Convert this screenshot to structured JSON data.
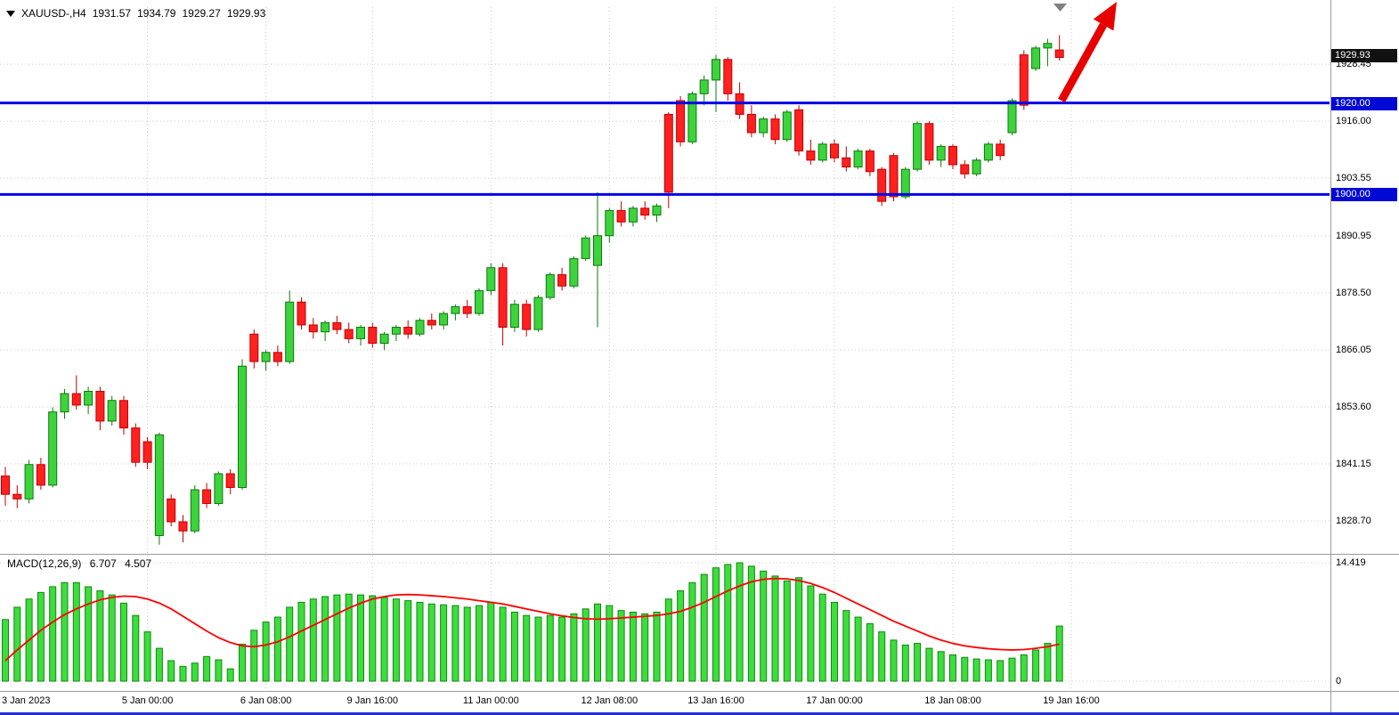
{
  "header": {
    "symbol_tf": "XAUUSD-,H4",
    "open": "1931.57",
    "high": "1934.79",
    "low": "1929.27",
    "close": "1929.93"
  },
  "macd": {
    "name": "MACD(12,26,9)",
    "value": "6.707",
    "signal": "4.507"
  },
  "price_axis": {
    "current_badge": "1929.93",
    "level_badges": [
      "1920.00",
      "1900.00"
    ],
    "scale_labels": [
      "1928.45",
      "1916.00",
      "1903.55",
      "1890.95",
      "1878.50",
      "1866.05",
      "1853.60",
      "1841.15",
      "1828.70"
    ]
  },
  "macd_axis": {
    "labels": [
      "14.419",
      "0"
    ]
  },
  "time_axis": {
    "labels": [
      "3 Jan 2023",
      "5 Jan 00:00",
      "6 Jan 08:00",
      "9 Jan 16:00",
      "11 Jan 00:00",
      "12 Jan 08:00",
      "13 Jan 16:00",
      "17 Jan 00:00",
      "18 Jan 08:00",
      "19 Jan 16:00"
    ]
  },
  "colors": {
    "bull": "#3dd33d",
    "bull_edge": "#0b7a0b",
    "bear": "#ff2020",
    "bear_edge": "#c00000",
    "level_line": "#0000e6",
    "badge_black": "#111111",
    "badge_blue": "#0008d6",
    "grid": "#c8c8c8",
    "signal_line": "#ff0000",
    "hist": "#3ddd3d",
    "hist_edge": "#0e8a0e",
    "arrow": "#e60000",
    "marker": "#808080",
    "window_border": "#2031cc"
  },
  "chart_data": [
    {
      "type": "candlestick",
      "title": "XAUUSD- H4",
      "ylim": [
        1823,
        1937
      ],
      "price_gridlines": [
        1928.45,
        1916.0,
        1903.55,
        1890.95,
        1878.5,
        1866.05,
        1853.6,
        1841.15,
        1828.7
      ],
      "levels": [
        1920.0,
        1900.0
      ],
      "current_bar": {
        "open": 1931.57,
        "high": 1934.79,
        "low": 1929.27,
        "close": 1929.93
      },
      "time_label_bars": [
        0,
        12,
        22,
        31,
        41,
        51,
        60,
        70,
        80,
        90
      ],
      "time_gridline_bars": [
        12,
        22,
        31,
        41,
        51,
        60,
        70,
        80,
        90
      ],
      "candles": [
        [
          1838.5,
          1840.5,
          1832.0,
          1834.5
        ],
        [
          1834.5,
          1836.5,
          1831.5,
          1833.5
        ],
        [
          1833.5,
          1842.0,
          1832.5,
          1841.0
        ],
        [
          1841.0,
          1842.5,
          1835.5,
          1836.5
        ],
        [
          1836.5,
          1853.5,
          1836.0,
          1852.5
        ],
        [
          1852.5,
          1857.5,
          1851.0,
          1856.5
        ],
        [
          1856.5,
          1860.5,
          1853.0,
          1854.0
        ],
        [
          1854.0,
          1858.0,
          1852.0,
          1857.0
        ],
        [
          1857.0,
          1858.0,
          1848.5,
          1850.5
        ],
        [
          1850.5,
          1856.0,
          1849.5,
          1855.0
        ],
        [
          1855.0,
          1856.0,
          1847.5,
          1849.0
        ],
        [
          1849.0,
          1850.0,
          1840.5,
          1841.5
        ],
        [
          1846.0,
          1847.0,
          1840.0,
          1841.5
        ],
        [
          1825.5,
          1848.0,
          1823.5,
          1847.5
        ],
        [
          1833.5,
          1834.5,
          1827.5,
          1828.5
        ],
        [
          1828.5,
          1830.0,
          1824.0,
          1826.5
        ],
        [
          1826.5,
          1836.5,
          1826.0,
          1835.5
        ],
        [
          1835.5,
          1837.0,
          1831.5,
          1832.5
        ],
        [
          1832.5,
          1839.5,
          1832.0,
          1839.0
        ],
        [
          1839.0,
          1840.0,
          1834.5,
          1836.0
        ],
        [
          1836.0,
          1864.0,
          1835.5,
          1862.5
        ],
        [
          1869.5,
          1870.5,
          1862.0,
          1863.5
        ],
        [
          1863.5,
          1866.0,
          1861.5,
          1865.5
        ],
        [
          1865.5,
          1867.0,
          1862.5,
          1863.5
        ],
        [
          1863.5,
          1879.0,
          1863.0,
          1876.5
        ],
        [
          1876.5,
          1877.5,
          1870.5,
          1871.5
        ],
        [
          1871.5,
          1873.0,
          1868.5,
          1870.0
        ],
        [
          1870.0,
          1872.5,
          1868.0,
          1872.0
        ],
        [
          1872.0,
          1873.5,
          1869.5,
          1870.5
        ],
        [
          1870.5,
          1872.0,
          1867.5,
          1868.5
        ],
        [
          1868.5,
          1871.5,
          1867.0,
          1871.0
        ],
        [
          1871.0,
          1872.0,
          1866.5,
          1867.5
        ],
        [
          1867.5,
          1870.0,
          1866.0,
          1869.5
        ],
        [
          1869.5,
          1871.5,
          1868.0,
          1871.0
        ],
        [
          1871.0,
          1872.5,
          1868.5,
          1869.5
        ],
        [
          1869.5,
          1873.0,
          1869.0,
          1872.5
        ],
        [
          1872.5,
          1874.0,
          1870.5,
          1871.5
        ],
        [
          1871.5,
          1874.5,
          1870.5,
          1874.0
        ],
        [
          1874.0,
          1876.0,
          1872.5,
          1875.5
        ],
        [
          1875.5,
          1877.0,
          1873.0,
          1874.0
        ],
        [
          1874.0,
          1879.5,
          1873.5,
          1879.0
        ],
        [
          1879.0,
          1885.0,
          1878.0,
          1884.0
        ],
        [
          1884.0,
          1885.0,
          1867.0,
          1871.0
        ],
        [
          1871.0,
          1877.0,
          1870.0,
          1876.0
        ],
        [
          1876.0,
          1877.0,
          1869.0,
          1870.5
        ],
        [
          1870.5,
          1878.0,
          1870.0,
          1877.5
        ],
        [
          1877.5,
          1883.0,
          1877.0,
          1882.5
        ],
        [
          1882.5,
          1884.0,
          1879.0,
          1880.0
        ],
        [
          1880.0,
          1886.5,
          1879.5,
          1886.0
        ],
        [
          1886.0,
          1891.0,
          1885.5,
          1890.5
        ],
        [
          1884.5,
          1900.5,
          1871.0,
          1891.0
        ],
        [
          1891.0,
          1897.0,
          1889.5,
          1896.5
        ],
        [
          1896.5,
          1898.5,
          1893.0,
          1894.0
        ],
        [
          1894.0,
          1897.5,
          1893.0,
          1897.0
        ],
        [
          1897.0,
          1898.5,
          1894.5,
          1895.5
        ],
        [
          1895.5,
          1898.0,
          1894.0,
          1897.5
        ],
        [
          1917.5,
          1918.0,
          1897.0,
          1900.5
        ],
        [
          1920.5,
          1921.5,
          1910.5,
          1911.5
        ],
        [
          1911.5,
          1922.5,
          1911.0,
          1922.0
        ],
        [
          1922.0,
          1926.0,
          1919.5,
          1925.0
        ],
        [
          1925.0,
          1930.5,
          1918.0,
          1929.5
        ],
        [
          1929.5,
          1930.0,
          1920.5,
          1922.0
        ],
        [
          1922.0,
          1924.5,
          1916.5,
          1917.5
        ],
        [
          1917.5,
          1919.5,
          1912.5,
          1913.5
        ],
        [
          1913.5,
          1917.0,
          1912.5,
          1916.5
        ],
        [
          1916.5,
          1917.5,
          1911.0,
          1912.0
        ],
        [
          1912.0,
          1918.5,
          1911.5,
          1918.0
        ],
        [
          1918.5,
          1919.5,
          1908.5,
          1909.5
        ],
        [
          1909.5,
          1912.0,
          1906.5,
          1907.5
        ],
        [
          1907.5,
          1911.5,
          1907.0,
          1911.0
        ],
        [
          1911.0,
          1912.0,
          1907.0,
          1908.0
        ],
        [
          1908.0,
          1910.5,
          1905.0,
          1906.0
        ],
        [
          1906.0,
          1910.0,
          1905.5,
          1909.5
        ],
        [
          1909.5,
          1910.0,
          1904.0,
          1905.0
        ],
        [
          1905.5,
          1906.0,
          1897.5,
          1898.5
        ],
        [
          1908.5,
          1909.0,
          1898.5,
          1899.5
        ],
        [
          1899.5,
          1906.0,
          1899.0,
          1905.5
        ],
        [
          1905.5,
          1916.0,
          1905.0,
          1915.5
        ],
        [
          1915.5,
          1916.0,
          1906.5,
          1907.5
        ],
        [
          1907.5,
          1911.0,
          1906.0,
          1910.5
        ],
        [
          1910.5,
          1911.0,
          1905.5,
          1906.5
        ],
        [
          1906.5,
          1907.5,
          1903.5,
          1904.5
        ],
        [
          1904.5,
          1908.0,
          1904.0,
          1907.5
        ],
        [
          1907.5,
          1911.5,
          1907.0,
          1911.0
        ],
        [
          1911.0,
          1912.0,
          1907.5,
          1908.5
        ],
        [
          1913.5,
          1921.0,
          1913.0,
          1920.5
        ],
        [
          1930.5,
          1931.5,
          1918.5,
          1919.5
        ],
        [
          1927.5,
          1932.5,
          1927.0,
          1932.0
        ],
        [
          1932.0,
          1934.0,
          1928.0,
          1933.0
        ],
        [
          1931.57,
          1934.79,
          1929.27,
          1929.93
        ]
      ]
    },
    {
      "type": "bar",
      "name": "MACD(12,26,9)",
      "ylim": [
        0,
        14.419
      ],
      "current_value": 6.707,
      "current_signal": 4.507,
      "values": [
        7.5,
        9.0,
        10.0,
        10.8,
        11.5,
        12.0,
        12.0,
        11.5,
        11.0,
        10.5,
        9.5,
        8.0,
        6.0,
        4.0,
        2.5,
        1.8,
        2.2,
        3.0,
        2.6,
        1.5,
        4.5,
        6.2,
        7.2,
        7.8,
        9.0,
        9.6,
        10.0,
        10.3,
        10.5,
        10.6,
        10.5,
        10.4,
        10.2,
        10.0,
        9.8,
        9.6,
        9.4,
        9.3,
        9.2,
        9.0,
        9.2,
        9.6,
        9.0,
        8.4,
        8.0,
        7.8,
        8.0,
        7.8,
        8.2,
        8.8,
        9.4,
        9.2,
        8.6,
        8.4,
        8.2,
        8.4,
        10.0,
        11.0,
        12.0,
        13.0,
        13.8,
        14.2,
        14.419,
        14.0,
        13.4,
        12.8,
        12.2,
        12.6,
        11.6,
        10.6,
        9.6,
        8.6,
        7.8,
        7.0,
        6.0,
        5.0,
        4.4,
        4.6,
        4.0,
        3.6,
        3.2,
        2.9,
        2.7,
        2.6,
        2.5,
        2.8,
        3.2,
        3.8,
        4.6,
        6.707
      ],
      "signal": [
        2.5,
        3.8,
        5.0,
        6.2,
        7.2,
        8.1,
        8.8,
        9.4,
        9.9,
        10.2,
        10.35,
        10.3,
        10.0,
        9.5,
        8.8,
        7.9,
        7.0,
        6.1,
        5.3,
        4.7,
        4.3,
        4.2,
        4.4,
        4.8,
        5.4,
        6.1,
        6.8,
        7.5,
        8.2,
        8.9,
        9.5,
        10.0,
        10.3,
        10.5,
        10.55,
        10.5,
        10.4,
        10.3,
        10.15,
        10.0,
        9.8,
        9.6,
        9.4,
        9.1,
        8.8,
        8.5,
        8.2,
        7.95,
        7.75,
        7.6,
        7.55,
        7.6,
        7.7,
        7.8,
        7.9,
        8.0,
        8.2,
        8.5,
        9.0,
        9.6,
        10.3,
        11.0,
        11.6,
        12.1,
        12.4,
        12.5,
        12.45,
        12.25,
        11.9,
        11.4,
        10.8,
        10.1,
        9.4,
        8.7,
        8.0,
        7.3,
        6.7,
        6.1,
        5.5,
        5.0,
        4.6,
        4.3,
        4.1,
        3.95,
        3.85,
        3.8,
        3.85,
        4.0,
        4.2,
        4.507
      ]
    }
  ]
}
